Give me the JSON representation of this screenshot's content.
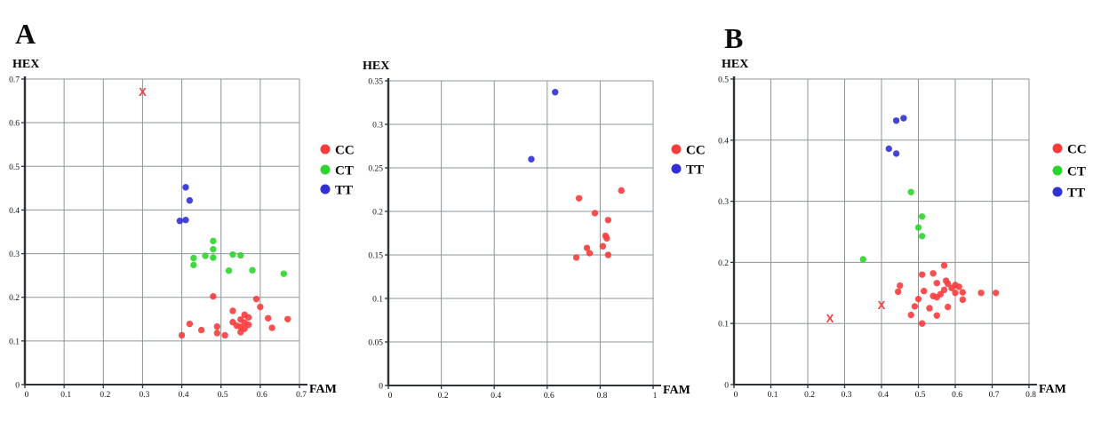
{
  "figure": {
    "background": "#ffffff",
    "description": "Allelic discrimination genotyping scatter plots"
  },
  "colors": {
    "cc_red": "#f93c3c",
    "ct_green": "#2ed42e",
    "tt_blue": "#3030d6",
    "undetermined_x": "#f93c3c",
    "grid": "#8d959a",
    "axis": "#2d3338",
    "text": "#000000"
  },
  "chart_data": [
    {
      "id": "panel-a",
      "type": "scatter",
      "panel_label": "A",
      "xlabel": "FAM",
      "ylabel": "HEX",
      "xlim": [
        0,
        0.7
      ],
      "ylim": [
        0,
        0.7
      ],
      "grid": true,
      "legend_position": "right",
      "xtick_labels": [
        "0",
        "0.1",
        "0.2",
        "0.3",
        "0.4",
        "0.5",
        "0.6",
        "0.7"
      ],
      "ytick_labels": [
        "0",
        "0.1",
        "0.2",
        "0.3",
        "0.4",
        "0.5",
        "0.6",
        "0.7"
      ],
      "legend": [
        {
          "label": "CC",
          "color": "#f93c3c"
        },
        {
          "label": "CT",
          "color": "#2ed42e"
        },
        {
          "label": "TT",
          "color": "#3030d6"
        }
      ],
      "series": [
        {
          "name": "CC",
          "marker": "circle",
          "color": "#f93c3c",
          "points": [
            [
              0.4,
              0.113
            ],
            [
              0.42,
              0.139
            ],
            [
              0.45,
              0.125
            ],
            [
              0.48,
              0.202
            ],
            [
              0.49,
              0.118
            ],
            [
              0.49,
              0.133
            ],
            [
              0.51,
              0.113
            ],
            [
              0.53,
              0.143
            ],
            [
              0.53,
              0.169
            ],
            [
              0.54,
              0.135
            ],
            [
              0.55,
              0.149
            ],
            [
              0.55,
              0.132
            ],
            [
              0.55,
              0.12
            ],
            [
              0.56,
              0.16
            ],
            [
              0.56,
              0.142
            ],
            [
              0.56,
              0.128
            ],
            [
              0.57,
              0.154
            ],
            [
              0.57,
              0.137
            ],
            [
              0.59,
              0.196
            ],
            [
              0.6,
              0.178
            ],
            [
              0.62,
              0.152
            ],
            [
              0.63,
              0.13
            ],
            [
              0.67,
              0.15
            ]
          ]
        },
        {
          "name": "CT",
          "marker": "circle",
          "color": "#2ed42e",
          "points": [
            [
              0.43,
              0.29
            ],
            [
              0.43,
              0.274
            ],
            [
              0.46,
              0.295
            ],
            [
              0.48,
              0.329
            ],
            [
              0.48,
              0.31
            ],
            [
              0.48,
              0.291
            ],
            [
              0.52,
              0.261
            ],
            [
              0.53,
              0.298
            ],
            [
              0.55,
              0.296
            ],
            [
              0.58,
              0.262
            ],
            [
              0.66,
              0.254
            ]
          ]
        },
        {
          "name": "TT",
          "marker": "circle",
          "color": "#3030d6",
          "points": [
            [
              0.395,
              0.375
            ],
            [
              0.41,
              0.377
            ],
            [
              0.41,
              0.452
            ],
            [
              0.42,
              0.422
            ]
          ]
        },
        {
          "name": "undetermined",
          "marker": "x",
          "color": "#f93c3c",
          "points": [
            [
              0.3,
              0.67
            ]
          ]
        }
      ]
    },
    {
      "id": "panel-middle",
      "type": "scatter",
      "panel_label": "",
      "xlabel": "FAM",
      "ylabel": "HEX",
      "xlim": [
        0,
        1
      ],
      "ylim": [
        0,
        0.35
      ],
      "grid": true,
      "legend_position": "right",
      "xtick_labels": [
        "0",
        "0.2",
        "0.4",
        "0.6",
        "0.8",
        "1"
      ],
      "ytick_labels": [
        "0",
        "0.05",
        "0.1",
        "0.15",
        "0.2",
        "0.25",
        "0.3",
        "0.35"
      ],
      "legend": [
        {
          "label": "CC",
          "color": "#f93c3c"
        },
        {
          "label": "TT",
          "color": "#3030d6"
        }
      ],
      "series": [
        {
          "name": "CC",
          "marker": "circle",
          "color": "#f93c3c",
          "points": [
            [
              0.71,
              0.147
            ],
            [
              0.72,
              0.215
            ],
            [
              0.75,
              0.158
            ],
            [
              0.76,
              0.152
            ],
            [
              0.78,
              0.198
            ],
            [
              0.81,
              0.16
            ],
            [
              0.82,
              0.172
            ],
            [
              0.825,
              0.169
            ],
            [
              0.83,
              0.19
            ],
            [
              0.83,
              0.15
            ],
            [
              0.88,
              0.224
            ]
          ]
        },
        {
          "name": "TT",
          "marker": "circle",
          "color": "#3030d6",
          "points": [
            [
              0.54,
              0.26
            ],
            [
              0.63,
              0.337
            ]
          ]
        }
      ]
    },
    {
      "id": "panel-b",
      "type": "scatter",
      "panel_label": "B",
      "xlabel": "FAM",
      "ylabel": "HEX",
      "xlim": [
        0,
        0.8
      ],
      "ylim": [
        0,
        0.5
      ],
      "grid": true,
      "legend_position": "right",
      "xtick_labels": [
        "0",
        "0.1",
        "0.2",
        "0.3",
        "0.4",
        "0.5",
        "0.6",
        "0.7",
        "0.8"
      ],
      "ytick_labels": [
        "0",
        "0.1",
        "0.2",
        "0.3",
        "0.4",
        "0.5"
      ],
      "legend": [
        {
          "label": "CC",
          "color": "#f93c3c"
        },
        {
          "label": "CT",
          "color": "#2ed42e"
        },
        {
          "label": "TT",
          "color": "#3030d6"
        }
      ],
      "series": [
        {
          "name": "CC",
          "marker": "circle",
          "color": "#f93c3c",
          "points": [
            [
              0.45,
              0.162
            ],
            [
              0.445,
              0.152
            ],
            [
              0.49,
              0.128
            ],
            [
              0.48,
              0.114
            ],
            [
              0.5,
              0.14
            ],
            [
              0.51,
              0.18
            ],
            [
              0.515,
              0.153
            ],
            [
              0.51,
              0.1
            ],
            [
              0.53,
              0.125
            ],
            [
              0.54,
              0.182
            ],
            [
              0.54,
              0.145
            ],
            [
              0.55,
              0.113
            ],
            [
              0.55,
              0.166
            ],
            [
              0.55,
              0.143
            ],
            [
              0.56,
              0.148
            ],
            [
              0.57,
              0.195
            ],
            [
              0.57,
              0.155
            ],
            [
              0.575,
              0.17
            ],
            [
              0.58,
              0.165
            ],
            [
              0.58,
              0.127
            ],
            [
              0.59,
              0.158
            ],
            [
              0.6,
              0.163
            ],
            [
              0.6,
              0.15
            ],
            [
              0.61,
              0.16
            ],
            [
              0.62,
              0.151
            ],
            [
              0.62,
              0.139
            ],
            [
              0.67,
              0.15
            ],
            [
              0.71,
              0.15
            ]
          ]
        },
        {
          "name": "CT",
          "marker": "circle",
          "color": "#2ed42e",
          "points": [
            [
              0.35,
              0.205
            ],
            [
              0.48,
              0.315
            ],
            [
              0.5,
              0.257
            ],
            [
              0.51,
              0.275
            ],
            [
              0.51,
              0.243
            ]
          ]
        },
        {
          "name": "TT",
          "marker": "circle",
          "color": "#3030d6",
          "points": [
            [
              0.42,
              0.386
            ],
            [
              0.44,
              0.378
            ],
            [
              0.44,
              0.432
            ],
            [
              0.46,
              0.436
            ]
          ]
        },
        {
          "name": "undetermined",
          "marker": "x",
          "color": "#f93c3c",
          "points": [
            [
              0.26,
              0.108
            ],
            [
              0.4,
              0.13
            ]
          ]
        }
      ]
    }
  ]
}
